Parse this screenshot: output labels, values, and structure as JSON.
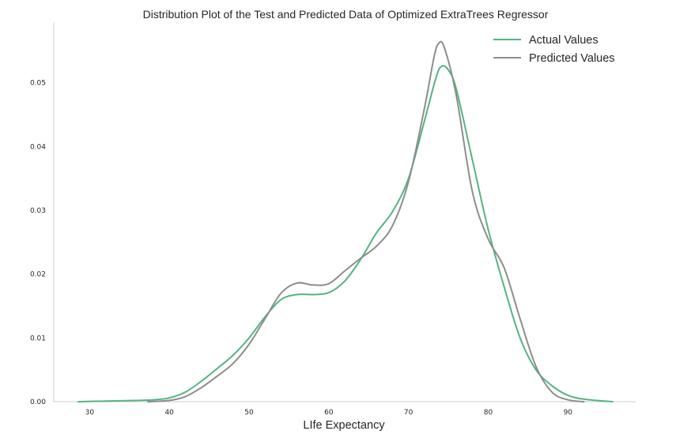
{
  "chart_data": {
    "type": "line",
    "title": "Distribution Plot of the Test and Predicted Data of Optimized ExtraTrees Regressor",
    "xlabel": "LIfe Expectancy",
    "ylabel": "",
    "xlim": [
      25.5,
      98.5
    ],
    "ylim": [
      0,
      0.0595
    ],
    "xticks": [
      30,
      40,
      50,
      60,
      70,
      80,
      90
    ],
    "yticks": [
      0.0,
      0.01,
      0.02,
      0.03,
      0.04,
      0.05
    ],
    "ytick_labels": [
      "0.00",
      "0.01",
      "0.02",
      "0.03",
      "0.04",
      "0.05"
    ],
    "grid": false,
    "legend_position": "upper-right",
    "series": [
      {
        "name": "Actual Values",
        "color": "#55b382",
        "points": [
          [
            28.6,
            0.0
          ],
          [
            32,
            0.0001
          ],
          [
            36,
            0.0002
          ],
          [
            38,
            0.0003
          ],
          [
            40,
            0.0006
          ],
          [
            42,
            0.0015
          ],
          [
            44,
            0.0032
          ],
          [
            46,
            0.0052
          ],
          [
            48,
            0.0073
          ],
          [
            50,
            0.01
          ],
          [
            52,
            0.0133
          ],
          [
            54,
            0.016
          ],
          [
            56,
            0.0168
          ],
          [
            58,
            0.0168
          ],
          [
            60,
            0.0171
          ],
          [
            62,
            0.0189
          ],
          [
            64,
            0.0223
          ],
          [
            66,
            0.0265
          ],
          [
            68,
            0.0298
          ],
          [
            70,
            0.035
          ],
          [
            72,
            0.044
          ],
          [
            73.5,
            0.051
          ],
          [
            74.2,
            0.0526
          ],
          [
            75,
            0.052
          ],
          [
            76,
            0.049
          ],
          [
            78,
            0.038
          ],
          [
            80,
            0.027
          ],
          [
            82,
            0.018
          ],
          [
            84,
            0.01
          ],
          [
            86,
            0.005
          ],
          [
            88,
            0.0025
          ],
          [
            90,
            0.001
          ],
          [
            92,
            0.0004
          ],
          [
            95.6,
            0.0
          ]
        ]
      },
      {
        "name": "Predicted Values",
        "color": "#8d8d8d",
        "points": [
          [
            37.3,
            0.0
          ],
          [
            40,
            0.0002
          ],
          [
            42,
            0.0008
          ],
          [
            44,
            0.0022
          ],
          [
            46,
            0.004
          ],
          [
            48,
            0.006
          ],
          [
            50,
            0.009
          ],
          [
            52,
            0.013
          ],
          [
            54,
            0.017
          ],
          [
            56,
            0.0186
          ],
          [
            58,
            0.0183
          ],
          [
            60,
            0.0185
          ],
          [
            62,
            0.0205
          ],
          [
            64,
            0.0225
          ],
          [
            66,
            0.0244
          ],
          [
            68,
            0.0276
          ],
          [
            70,
            0.0345
          ],
          [
            72,
            0.046
          ],
          [
            73.2,
            0.054
          ],
          [
            73.8,
            0.0562
          ],
          [
            74.5,
            0.0555
          ],
          [
            76,
            0.048
          ],
          [
            78,
            0.033
          ],
          [
            80,
            0.0255
          ],
          [
            82,
            0.021
          ],
          [
            84,
            0.013
          ],
          [
            86,
            0.0055
          ],
          [
            88,
            0.0015
          ],
          [
            90,
            0.0003
          ],
          [
            92,
            0.0
          ]
        ]
      }
    ]
  }
}
